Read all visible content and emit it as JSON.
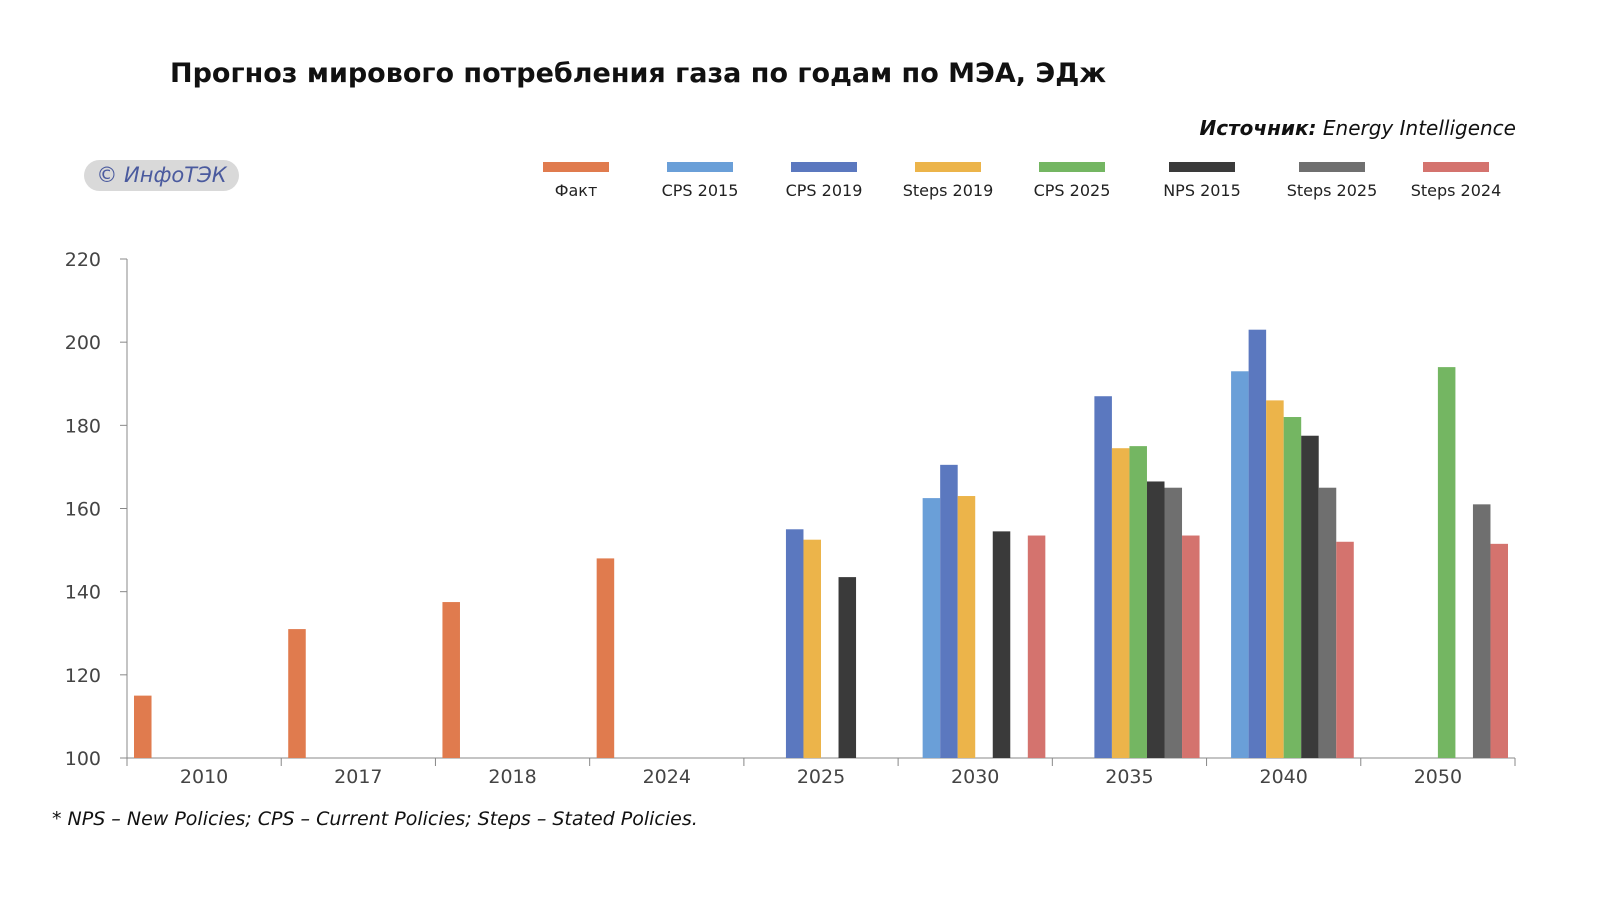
{
  "chart_data": {
    "type": "bar",
    "title": "Прогноз мирового потребления газа по годам по МЭА, ЭДж",
    "source_label": "Источник:",
    "source_value": "Energy Intelligence",
    "watermark": "© ИнфоТЭК",
    "footnote": "* NPS – New Policies; CPS – Current Policies; Steps – Stated Policies.",
    "xlabel": "",
    "ylabel": "",
    "ylim": [
      100,
      220
    ],
    "yticks": [
      "100",
      "120",
      "140",
      "160",
      "180",
      "200",
      "220"
    ],
    "categories": [
      "2010",
      "2017",
      "2018",
      "2024",
      "2025",
      "2030",
      "2035",
      "2040",
      "2050"
    ],
    "legend_position": "top-right",
    "series": [
      {
        "name": "Факт",
        "color": "#e07b45",
        "values": [
          115,
          131,
          137.5,
          148,
          null,
          null,
          null,
          null,
          null
        ]
      },
      {
        "name": "CPS 2015",
        "color": "#5b9bd5",
        "values": [
          null,
          null,
          null,
          null,
          null,
          162.5,
          null,
          193,
          null
        ]
      },
      {
        "name": "CPS 2019",
        "color": "#4472c4",
        "values": [
          null,
          null,
          null,
          null,
          155,
          170.5,
          187,
          203,
          null
        ]
      },
      {
        "name": "Steps 2019",
        "color": "#ffc000",
        "values": [
          null,
          null,
          null,
          null,
          152.5,
          163,
          174.5,
          186,
          null
        ]
      },
      {
        "name": "CPS 2025",
        "color": "#70ad47",
        "values": [
          null,
          null,
          null,
          null,
          null,
          null,
          175,
          182,
          194
        ]
      },
      {
        "name": "NPS 2015",
        "color": "#333333",
        "values": [
          null,
          null,
          null,
          null,
          143.5,
          154.5,
          166.5,
          177.5,
          null
        ]
      },
      {
        "name": "Steps 2025",
        "color": "#808080",
        "values": [
          null,
          null,
          null,
          null,
          null,
          null,
          165,
          165,
          161
        ]
      },
      {
        "name": "Steps 2024",
        "color": "#e06666",
        "values": [
          null,
          null,
          null,
          null,
          null,
          153.5,
          153.5,
          152,
          151.5
        ]
      }
    ],
    "bar_colors": [
      "#e07b4e",
      "#6a9fd8",
      "#5b78bf",
      "#ecb44a",
      "#74b662",
      "#3a3a3a",
      "#6f6f6f",
      "#d4736e"
    ]
  }
}
